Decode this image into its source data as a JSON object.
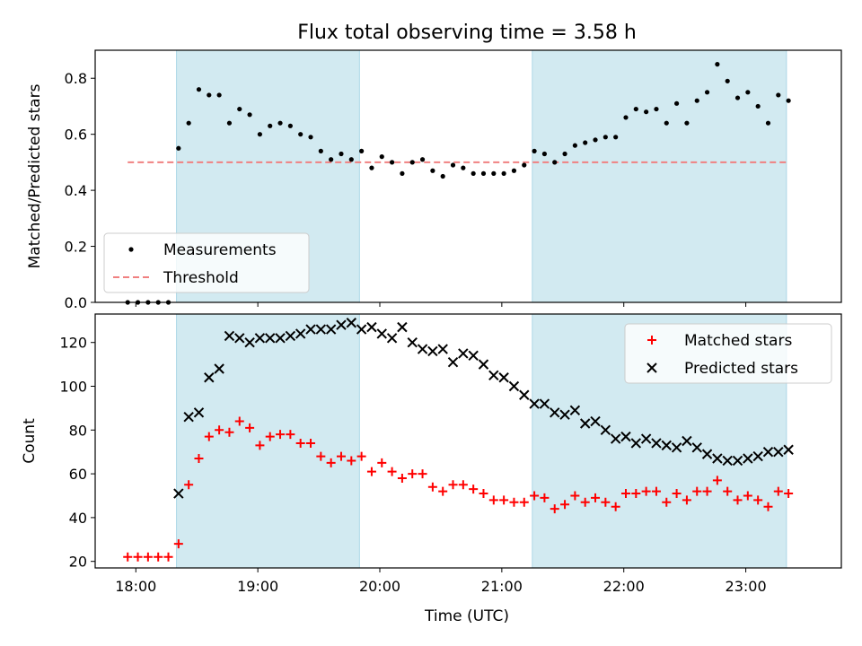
{
  "chart_data": [
    {
      "type": "scatter",
      "title": "Flux total observing time = 3.58 h",
      "xlabel": "",
      "ylabel": "Matched/Predicted stars",
      "xlim": [
        "17:40",
        "23:47"
      ],
      "ylim": [
        0,
        0.9
      ],
      "yticks": [
        0,
        0.2,
        0.4,
        0.6,
        0.8
      ],
      "ytick_labels": [
        "0.0",
        "0.2",
        "0.4",
        "0.6",
        "0.8"
      ],
      "shaded_intervals": [
        [
          "18:20",
          "19:50"
        ],
        [
          "21:15",
          "23:20"
        ]
      ],
      "shade_color": "#add8e6",
      "threshold": {
        "name": "Threshold",
        "value": 0.5,
        "x": [
          "17:56",
          "23:20"
        ],
        "color": "#f08080"
      },
      "legend": {
        "placement": "lower-left",
        "entries": [
          "Measurements",
          "Threshold"
        ]
      },
      "series": [
        {
          "name": "Measurements",
          "color": "#000000",
          "x": [
            "17:56",
            "18:01",
            "18:06",
            "18:11",
            "18:16",
            "18:21",
            "18:26",
            "18:31",
            "18:36",
            "18:41",
            "18:46",
            "18:51",
            "18:56",
            "19:01",
            "19:06",
            "19:11",
            "19:16",
            "19:21",
            "19:26",
            "19:31",
            "19:36",
            "19:41",
            "19:46",
            "19:51",
            "19:56",
            "20:01",
            "20:06",
            "20:11",
            "20:16",
            "20:21",
            "20:26",
            "20:31",
            "20:36",
            "20:41",
            "20:46",
            "20:51",
            "20:56",
            "21:01",
            "21:06",
            "21:11",
            "21:16",
            "21:21",
            "21:26",
            "21:31",
            "21:36",
            "21:41",
            "21:46",
            "21:51",
            "21:56",
            "22:01",
            "22:06",
            "22:11",
            "22:16",
            "22:21",
            "22:26",
            "22:31",
            "22:36",
            "22:41",
            "22:46",
            "22:51",
            "22:56",
            "23:01",
            "23:06",
            "23:11",
            "23:16",
            "23:21"
          ],
          "y": [
            0.0,
            0.0,
            0.0,
            0.0,
            0.0,
            0.55,
            0.64,
            0.76,
            0.74,
            0.74,
            0.64,
            0.69,
            0.67,
            0.6,
            0.63,
            0.64,
            0.63,
            0.6,
            0.59,
            0.54,
            0.51,
            0.53,
            0.51,
            0.54,
            0.48,
            0.52,
            0.5,
            0.46,
            0.5,
            0.51,
            0.47,
            0.45,
            0.49,
            0.48,
            0.46,
            0.46,
            0.46,
            0.46,
            0.47,
            0.49,
            0.54,
            0.53,
            0.5,
            0.53,
            0.56,
            0.57,
            0.58,
            0.59,
            0.59,
            0.66,
            0.69,
            0.68,
            0.69,
            0.64,
            0.71,
            0.64,
            0.72,
            0.75,
            0.85,
            0.79,
            0.73,
            0.75,
            0.7,
            0.64,
            0.74,
            0.72
          ]
        }
      ]
    },
    {
      "type": "scatter",
      "title": "",
      "xlabel": "Time (UTC)",
      "ylabel": "Count",
      "xlim": [
        "17:40",
        "23:47"
      ],
      "ylim": [
        17,
        133
      ],
      "yticks": [
        20,
        40,
        60,
        80,
        100,
        120
      ],
      "ytick_labels": [
        "20",
        "40",
        "60",
        "80",
        "100",
        "120"
      ],
      "xticks": [
        "18:00",
        "19:00",
        "20:00",
        "21:00",
        "22:00",
        "23:00"
      ],
      "shaded_intervals": [
        [
          "18:20",
          "19:50"
        ],
        [
          "21:15",
          "23:20"
        ]
      ],
      "shade_color": "#add8e6",
      "legend": {
        "placement": "top-right",
        "entries": [
          "Matched stars",
          "Predicted stars"
        ]
      },
      "series": [
        {
          "name": "Matched stars",
          "marker": "plus",
          "color": "#ff0000",
          "x": [
            "17:56",
            "18:01",
            "18:06",
            "18:11",
            "18:16",
            "18:21",
            "18:26",
            "18:31",
            "18:36",
            "18:41",
            "18:46",
            "18:51",
            "18:56",
            "19:01",
            "19:06",
            "19:11",
            "19:16",
            "19:21",
            "19:26",
            "19:31",
            "19:36",
            "19:41",
            "19:46",
            "19:51",
            "19:56",
            "20:01",
            "20:06",
            "20:11",
            "20:16",
            "20:21",
            "20:26",
            "20:31",
            "20:36",
            "20:41",
            "20:46",
            "20:51",
            "20:56",
            "21:01",
            "21:06",
            "21:11",
            "21:16",
            "21:21",
            "21:26",
            "21:31",
            "21:36",
            "21:41",
            "21:46",
            "21:51",
            "21:56",
            "22:01",
            "22:06",
            "22:11",
            "22:16",
            "22:21",
            "22:26",
            "22:31",
            "22:36",
            "22:41",
            "22:46",
            "22:51",
            "22:56",
            "23:01",
            "23:06",
            "23:11",
            "23:16",
            "23:21"
          ],
          "y": [
            22,
            22,
            22,
            22,
            22,
            28,
            55,
            67,
            77,
            80,
            79,
            84,
            81,
            73,
            77,
            78,
            78,
            74,
            74,
            68,
            65,
            68,
            66,
            68,
            61,
            65,
            61,
            58,
            60,
            60,
            54,
            52,
            55,
            55,
            53,
            51,
            48,
            48,
            47,
            47,
            50,
            49,
            44,
            46,
            50,
            47,
            49,
            47,
            45,
            51,
            51,
            52,
            52,
            47,
            51,
            48,
            52,
            52,
            57,
            52,
            48,
            50,
            48,
            45,
            52,
            51
          ]
        },
        {
          "name": "Predicted stars",
          "marker": "x",
          "color": "#000000",
          "x": [
            "18:21",
            "18:26",
            "18:31",
            "18:36",
            "18:41",
            "18:46",
            "18:51",
            "18:56",
            "19:01",
            "19:06",
            "19:11",
            "19:16",
            "19:21",
            "19:26",
            "19:31",
            "19:36",
            "19:41",
            "19:46",
            "19:51",
            "19:56",
            "20:01",
            "20:06",
            "20:11",
            "20:16",
            "20:21",
            "20:26",
            "20:31",
            "20:36",
            "20:41",
            "20:46",
            "20:51",
            "20:56",
            "21:01",
            "21:06",
            "21:11",
            "21:16",
            "21:21",
            "21:26",
            "21:31",
            "21:36",
            "21:41",
            "21:46",
            "21:51",
            "21:56",
            "22:01",
            "22:06",
            "22:11",
            "22:16",
            "22:21",
            "22:26",
            "22:31",
            "22:36",
            "22:41",
            "22:46",
            "22:51",
            "22:56",
            "23:01",
            "23:06",
            "23:11",
            "23:16",
            "23:21"
          ],
          "y": [
            51,
            86,
            88,
            104,
            108,
            123,
            122,
            120,
            122,
            122,
            122,
            123,
            124,
            126,
            126,
            126,
            128,
            129,
            126,
            127,
            124,
            122,
            127,
            120,
            117,
            116,
            117,
            111,
            115,
            114,
            110,
            105,
            104,
            100,
            96,
            92,
            92,
            88,
            87,
            89,
            83,
            84,
            80,
            76,
            77,
            74,
            76,
            74,
            73,
            72,
            75,
            72,
            69,
            67,
            66,
            66,
            67,
            68,
            70,
            70,
            71
          ]
        }
      ]
    }
  ]
}
